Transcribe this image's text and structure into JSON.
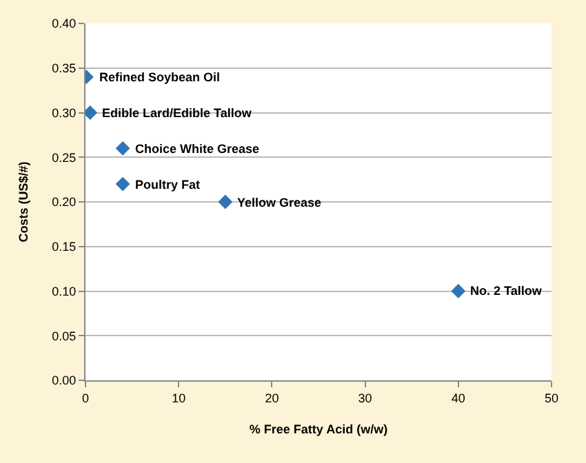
{
  "chart_data": {
    "type": "scatter",
    "xlabel": "% Free Fatty Acid (w/w)",
    "ylabel": "Costs (US$/#)",
    "x": [
      0.1,
      0.5,
      4,
      4,
      15,
      40
    ],
    "values": [
      0.34,
      0.3,
      0.26,
      0.22,
      0.2,
      0.1
    ],
    "color": "#2e75b6",
    "marker": "diamond",
    "xlim": [
      0,
      50
    ],
    "xticks": [
      0,
      10,
      20,
      30,
      40,
      50
    ],
    "ylim": [
      0,
      0.4
    ],
    "yticks": [
      {
        "value": 0,
        "label": "0.00"
      },
      {
        "value": 0.05,
        "label": "0.05"
      },
      {
        "value": 0.1,
        "label": "0.10"
      },
      {
        "value": 0.15,
        "label": "0.15"
      },
      {
        "value": 0.2,
        "label": "0.20"
      },
      {
        "value": 0.25,
        "label": "0.25"
      },
      {
        "value": 0.3,
        "label": "0.30"
      },
      {
        "value": 0.35,
        "label": "0.35"
      },
      {
        "value": 0.4,
        "label": "0.40"
      }
    ],
    "grid": "y",
    "legend": false,
    "annotations": [
      {
        "text": "Refined Soybean Oil",
        "x": 0.1,
        "y": 0.34
      },
      {
        "text": "Edible Lard/Edible Tallow",
        "x": 0.5,
        "y": 0.3
      },
      {
        "text": "Choice White Grease",
        "x": 4,
        "y": 0.26
      },
      {
        "text": "Poultry Fat",
        "x": 4,
        "y": 0.22
      },
      {
        "text": "Yellow Grease",
        "x": 15,
        "y": 0.2
      },
      {
        "text": "No. 2 Tallow",
        "x": 40,
        "y": 0.1
      }
    ]
  }
}
